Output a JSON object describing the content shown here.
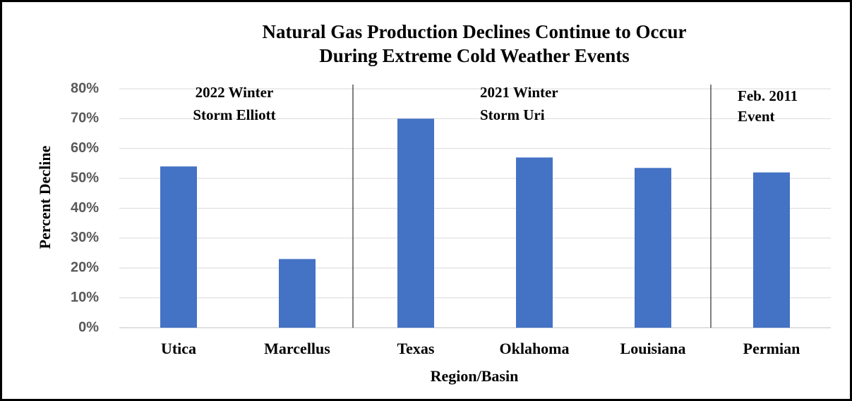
{
  "chart_data": {
    "type": "bar",
    "title": [
      "Natural Gas Production Declines Continue to Occur",
      "During Extreme Cold Weather Events"
    ],
    "x_label": "Region/Basin",
    "y_label": "Percent Decline",
    "categories": [
      "Utica",
      "Marcellus",
      "Texas",
      "Oklahoma",
      "Louisiana",
      "Permian"
    ],
    "values": [
      54,
      23,
      70,
      57,
      53.5,
      52
    ],
    "color": "#4472c4",
    "ylim": [
      0,
      80
    ],
    "yticks": [
      {
        "value": 0,
        "label": "0%"
      },
      {
        "value": 10,
        "label": "10%"
      },
      {
        "value": 20,
        "label": "20%"
      },
      {
        "value": 30,
        "label": "30%"
      },
      {
        "value": 40,
        "label": "40%"
      },
      {
        "value": 50,
        "label": "50%"
      },
      {
        "value": 60,
        "label": "60%"
      },
      {
        "value": 70,
        "label": "70%"
      },
      {
        "value": 80,
        "label": "80%"
      }
    ],
    "grid": true,
    "annotations": [
      [
        "2022 Winter",
        "Storm Elliott"
      ],
      [
        "2021 Winter",
        "Storm Uri"
      ],
      [
        "Feb. 2011",
        "Event"
      ]
    ]
  }
}
